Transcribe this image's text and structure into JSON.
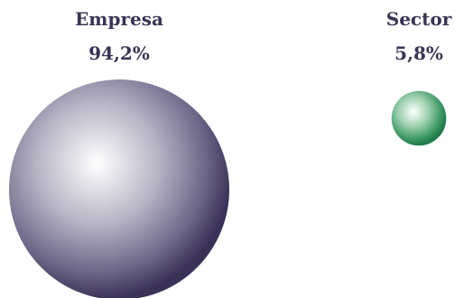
{
  "chart_data": {
    "type": "bubble",
    "series": [
      {
        "name": "Empresa",
        "value": 94.2,
        "value_label": "94,2%",
        "color": "#3a3157"
      },
      {
        "name": "Sector",
        "value": 5.8,
        "value_label": "5,8%",
        "color": "#1f7a4d"
      }
    ]
  }
}
